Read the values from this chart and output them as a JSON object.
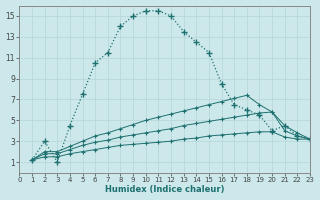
{
  "xlabel": "Humidex (Indice chaleur)",
  "bg_color": "#cce8ea",
  "grid_color": "#b8d8da",
  "line_color": "#1e7070",
  "xlim": [
    0,
    23
  ],
  "ylim": [
    0,
    16
  ],
  "xticks": [
    0,
    1,
    2,
    3,
    4,
    5,
    6,
    7,
    8,
    9,
    10,
    11,
    12,
    13,
    14,
    15,
    16,
    17,
    18,
    19,
    20,
    21,
    22,
    23
  ],
  "yticks": [
    1,
    3,
    5,
    7,
    9,
    11,
    13,
    15
  ],
  "series1_x": [
    1,
    2,
    3,
    4,
    5,
    6,
    7,
    8,
    9,
    10,
    11,
    12,
    13,
    14,
    15,
    16,
    17,
    18,
    19,
    20,
    21,
    22,
    23
  ],
  "series1_y": [
    1.2,
    3.0,
    1.0,
    4.5,
    7.5,
    10.5,
    11.5,
    14.0,
    15.0,
    15.5,
    15.5,
    15.0,
    13.5,
    12.5,
    11.5,
    8.5,
    6.5,
    6.0,
    5.5,
    4.0,
    4.5,
    3.5,
    3.2
  ],
  "series2_x": [
    1,
    2,
    3,
    4,
    5,
    6,
    7,
    8,
    9,
    10,
    11,
    12,
    13,
    14,
    15,
    16,
    17,
    18,
    19,
    20,
    21,
    22,
    23
  ],
  "series2_y": [
    1.2,
    2.0,
    2.0,
    2.5,
    3.0,
    3.5,
    3.8,
    4.2,
    4.6,
    5.0,
    5.3,
    5.6,
    5.9,
    6.2,
    6.5,
    6.8,
    7.1,
    7.4,
    6.5,
    5.8,
    4.5,
    3.8,
    3.2
  ],
  "series3_x": [
    1,
    2,
    3,
    4,
    5,
    6,
    7,
    8,
    9,
    10,
    11,
    12,
    13,
    14,
    15,
    16,
    17,
    18,
    19,
    20,
    21,
    22,
    23
  ],
  "series3_y": [
    1.2,
    1.8,
    1.8,
    2.2,
    2.6,
    2.9,
    3.1,
    3.4,
    3.6,
    3.8,
    4.0,
    4.2,
    4.5,
    4.7,
    4.9,
    5.1,
    5.3,
    5.5,
    5.7,
    5.8,
    4.0,
    3.5,
    3.2
  ],
  "series4_x": [
    1,
    2,
    3,
    4,
    5,
    6,
    7,
    8,
    9,
    10,
    11,
    12,
    13,
    14,
    15,
    16,
    17,
    18,
    19,
    20,
    21,
    22,
    23
  ],
  "series4_y": [
    1.2,
    1.5,
    1.5,
    1.8,
    2.0,
    2.2,
    2.4,
    2.6,
    2.7,
    2.8,
    2.9,
    3.0,
    3.2,
    3.3,
    3.5,
    3.6,
    3.7,
    3.8,
    3.9,
    3.9,
    3.4,
    3.2,
    3.2
  ]
}
